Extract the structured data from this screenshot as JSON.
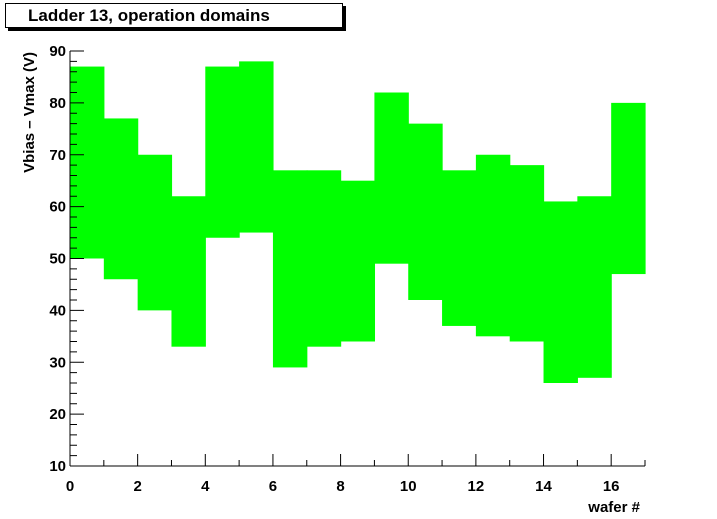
{
  "title": "Ladder 13, operation domains",
  "colors": {
    "fill": "#00ff00",
    "axis": "#000000",
    "background": "#ffffff"
  },
  "chart_data": {
    "type": "bar",
    "title": "Ladder 13, operation domains",
    "xlabel": "wafer #",
    "ylabel": "Vbias – Vmax (V)",
    "xlim": [
      0,
      17
    ],
    "ylim": [
      10,
      90
    ],
    "x_tick_labels": [
      "0",
      "2",
      "4",
      "6",
      "8",
      "10",
      "12",
      "14",
      "16"
    ],
    "y_tick_labels": [
      "10",
      "20",
      "30",
      "40",
      "50",
      "60",
      "70",
      "80",
      "90"
    ],
    "grid": false,
    "bins": [
      {
        "wafer": 0,
        "low": 50,
        "high": 87
      },
      {
        "wafer": 1,
        "low": 46,
        "high": 77
      },
      {
        "wafer": 2,
        "low": 40,
        "high": 70
      },
      {
        "wafer": 3,
        "low": 33,
        "high": 62
      },
      {
        "wafer": 4,
        "low": 54,
        "high": 87
      },
      {
        "wafer": 5,
        "low": 55,
        "high": 88
      },
      {
        "wafer": 6,
        "low": 29,
        "high": 67
      },
      {
        "wafer": 7,
        "low": 33,
        "high": 67
      },
      {
        "wafer": 8,
        "low": 34,
        "high": 65
      },
      {
        "wafer": 9,
        "low": 49,
        "high": 82
      },
      {
        "wafer": 10,
        "low": 42,
        "high": 76
      },
      {
        "wafer": 11,
        "low": 37,
        "high": 67
      },
      {
        "wafer": 12,
        "low": 35,
        "high": 70
      },
      {
        "wafer": 13,
        "low": 34,
        "high": 68
      },
      {
        "wafer": 14,
        "low": 26,
        "high": 61
      },
      {
        "wafer": 15,
        "low": 27,
        "high": 62
      },
      {
        "wafer": 16,
        "low": 47,
        "high": 80
      }
    ]
  }
}
